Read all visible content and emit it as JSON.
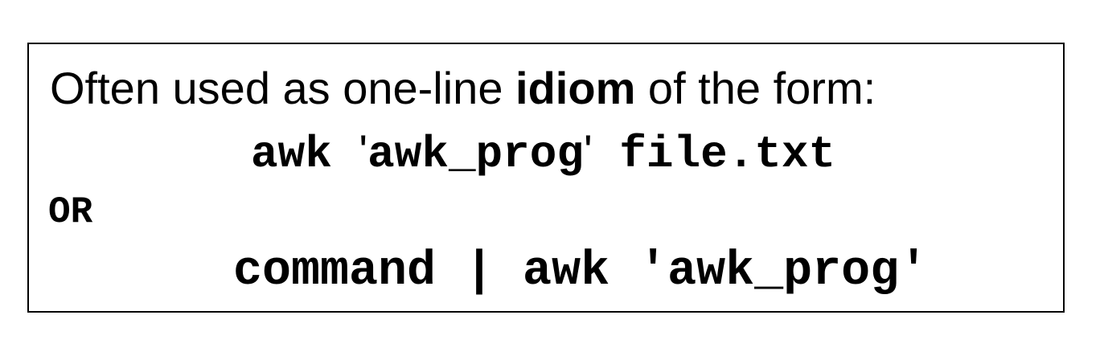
{
  "intro": {
    "before": "Often used as one-line ",
    "emphasis": "idiom",
    "after": " of the form:"
  },
  "form1": {
    "cmd": "awk ",
    "quote_open": "'",
    "prog": "awk_prog",
    "quote_close": "'",
    "file": " file.txt"
  },
  "separator": "OR",
  "form2": {
    "text": "command | awk 'awk_prog'"
  }
}
